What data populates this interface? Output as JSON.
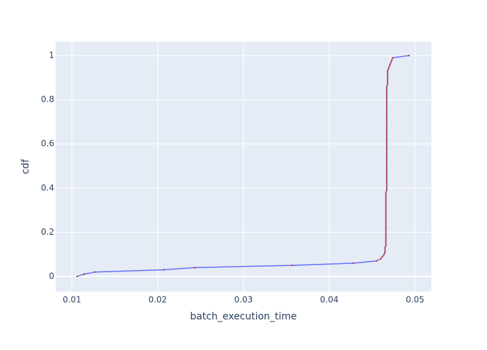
{
  "chart_data": {
    "type": "line",
    "x_label": "batch_execution_time",
    "y_label": "cdf",
    "x": [
      0.0106,
      0.0114,
      0.0127,
      0.0207,
      0.0243,
      0.0357,
      0.0428,
      0.0455,
      0.046,
      0.0462,
      0.0464,
      0.0465,
      0.0465,
      0.0465,
      0.0466,
      0.0466,
      0.0466,
      0.0466,
      0.0466,
      0.0466,
      0.0466,
      0.0466,
      0.0466,
      0.0466,
      0.0466,
      0.0466,
      0.0466,
      0.0466,
      0.0466,
      0.0466,
      0.0466,
      0.0466,
      0.0466,
      0.0466,
      0.0466,
      0.0466,
      0.0466,
      0.0466,
      0.0466,
      0.0467,
      0.0467,
      0.0467,
      0.0467,
      0.0467,
      0.0467,
      0.0467,
      0.0467,
      0.0467,
      0.0467,
      0.0467,
      0.0467,
      0.0467,
      0.0467,
      0.0467,
      0.0467,
      0.0467,
      0.0467,
      0.0467,
      0.0467,
      0.0467,
      0.0467,
      0.0467,
      0.0467,
      0.0467,
      0.0467,
      0.0467,
      0.0467,
      0.0467,
      0.0467,
      0.0467,
      0.0467,
      0.0467,
      0.0467,
      0.0467,
      0.0467,
      0.0467,
      0.0467,
      0.0467,
      0.0467,
      0.0467,
      0.0467,
      0.0467,
      0.0467,
      0.0467,
      0.0467,
      0.0467,
      0.0467,
      0.0468,
      0.0468,
      0.0468,
      0.0468,
      0.0468,
      0.0468,
      0.0468,
      0.0469,
      0.047,
      0.0471,
      0.0472,
      0.0473,
      0.0474,
      0.0493
    ],
    "series": [
      {
        "color": "#636efa",
        "marker_color": "#c0392b",
        "values": [
          0,
          0.01,
          0.02,
          0.03,
          0.04,
          0.05,
          0.06,
          0.07,
          0.08,
          0.09,
          0.1,
          0.11,
          0.12,
          0.13,
          0.14,
          0.15,
          0.16,
          0.17,
          0.18,
          0.19,
          0.2,
          0.21,
          0.22,
          0.23,
          0.24,
          0.25,
          0.26,
          0.27,
          0.28,
          0.29,
          0.3,
          0.31,
          0.32,
          0.33,
          0.34,
          0.35,
          0.36,
          0.37,
          0.38,
          0.39,
          0.4,
          0.41,
          0.42,
          0.43,
          0.44,
          0.45,
          0.46,
          0.47,
          0.48,
          0.49,
          0.5,
          0.51,
          0.52,
          0.53,
          0.54,
          0.55,
          0.56,
          0.57,
          0.58,
          0.59,
          0.6,
          0.61,
          0.62,
          0.63,
          0.64,
          0.65,
          0.66,
          0.67,
          0.68,
          0.69,
          0.7,
          0.71,
          0.72,
          0.73,
          0.74,
          0.75,
          0.76,
          0.77,
          0.78,
          0.79,
          0.8,
          0.81,
          0.82,
          0.83,
          0.84,
          0.85,
          0.86,
          0.87,
          0.88,
          0.89,
          0.9,
          0.91,
          0.92,
          0.93,
          0.94,
          0.95,
          0.96,
          0.97,
          0.98,
          0.99,
          1
        ]
      }
    ],
    "xlim": [
      0.0081,
      0.0519
    ],
    "ylim": [
      -0.069,
      1.063
    ],
    "xticks": [
      0.01,
      0.02,
      0.03,
      0.04,
      0.05
    ],
    "yticks": [
      0,
      0.2,
      0.4,
      0.6,
      0.8,
      1
    ],
    "grid": true,
    "background": "#e5ecf6"
  }
}
